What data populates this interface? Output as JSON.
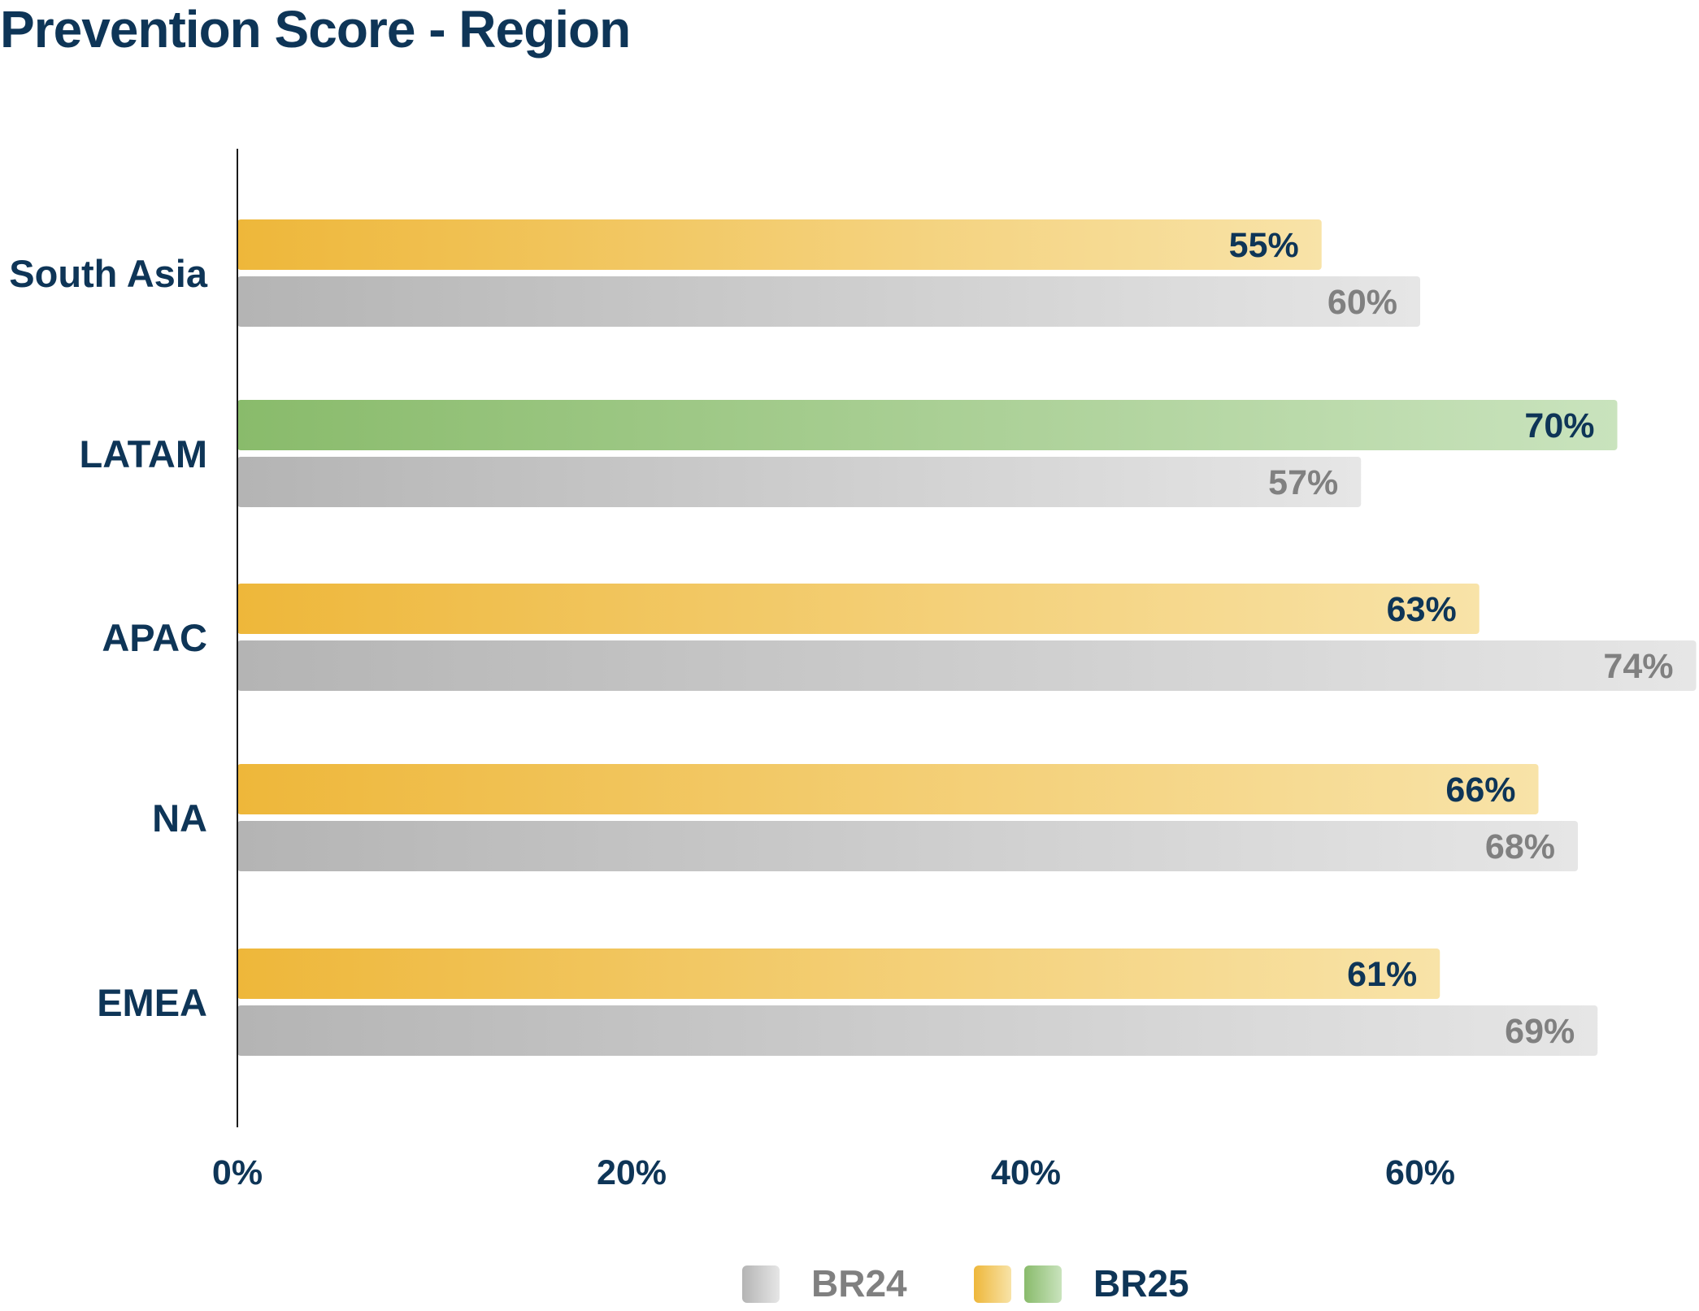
{
  "colors": {
    "title": "#0e3557",
    "axis": "#1a1a1a",
    "br24_label": "#808080",
    "br24_start": "#b4b4b4",
    "br24_end": "#e6e6e6",
    "br25_start": "#eeb73a",
    "br25_end": "#f8e3a8",
    "br25_highlight_start": "#89bb6b",
    "br25_highlight_end": "#c9e3bd"
  },
  "chart_data": {
    "type": "bar",
    "orientation": "horizontal",
    "title": "Prevention Score - Region",
    "xlabel": "",
    "ylabel": "",
    "xlim": [
      0,
      75
    ],
    "x_ticks": [
      0,
      20,
      40,
      60
    ],
    "x_tick_labels": [
      "0%",
      "20%",
      "40%",
      "60%"
    ],
    "grid": false,
    "legend_position": "bottom-center",
    "categories": [
      "South Asia",
      "LATAM",
      "APAC",
      "NA",
      "EMEA"
    ],
    "series": [
      {
        "name": "BR25",
        "values": [
          55,
          70,
          63,
          66,
          61
        ],
        "labels": [
          "55%",
          "70%",
          "63%",
          "66%",
          "61%"
        ],
        "highlight_category": "LATAM"
      },
      {
        "name": "BR24",
        "values": [
          60,
          57,
          74,
          68,
          69
        ],
        "labels": [
          "60%",
          "57%",
          "74%",
          "68%",
          "69%"
        ]
      }
    ],
    "legend": [
      {
        "label": "BR24",
        "swatches": [
          "br24"
        ]
      },
      {
        "label": "BR25",
        "swatches": [
          "br25",
          "br25_highlight"
        ]
      }
    ]
  }
}
